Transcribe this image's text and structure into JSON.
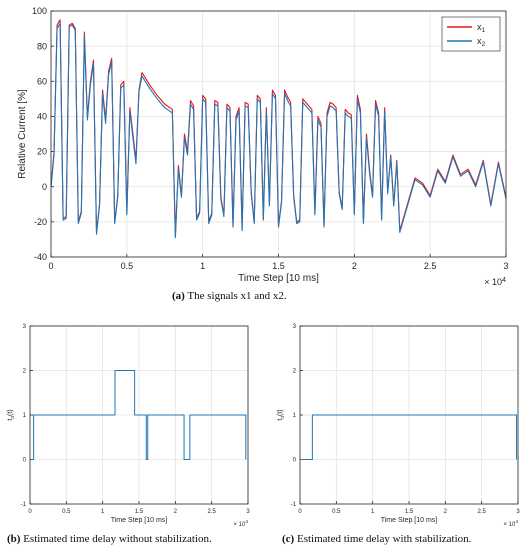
{
  "chart_data": [
    {
      "type": "line",
      "id": "a",
      "caption_label": "(a)",
      "caption_text": "The signals x1 and x2.",
      "xlabel": "Time Step [10 ms]",
      "ylabel": "Relative Current [%]",
      "x_exponent": "× 10^4",
      "xlim": [
        0,
        3
      ],
      "ylim": [
        -40,
        100
      ],
      "xticks": [
        "0",
        "0.5",
        "1",
        "1.5",
        "2",
        "2.5",
        "3"
      ],
      "yticks": [
        "-40",
        "-20",
        "0",
        "20",
        "40",
        "60",
        "80",
        "100"
      ],
      "grid": true,
      "legend": {
        "placement": "top-right",
        "entries": [
          "x1",
          "x2"
        ]
      },
      "series": [
        {
          "name": "x1",
          "color": "#e8161b",
          "x": [
            0,
            0.02,
            0.04,
            0.06,
            0.08,
            0.1,
            0.12,
            0.14,
            0.16,
            0.18,
            0.2,
            0.22,
            0.24,
            0.26,
            0.28,
            0.3,
            0.32,
            0.34,
            0.36,
            0.38,
            0.4,
            0.42,
            0.44,
            0.46,
            0.48,
            0.5,
            0.52,
            0.54,
            0.56,
            0.58,
            0.6,
            0.65,
            0.7,
            0.75,
            0.8,
            0.82,
            0.84,
            0.86,
            0.88,
            0.9,
            0.92,
            0.94,
            0.96,
            0.98,
            1.0,
            1.02,
            1.04,
            1.06,
            1.08,
            1.1,
            1.12,
            1.14,
            1.16,
            1.18,
            1.2,
            1.22,
            1.24,
            1.26,
            1.28,
            1.3,
            1.32,
            1.34,
            1.36,
            1.38,
            1.4,
            1.42,
            1.44,
            1.46,
            1.48,
            1.5,
            1.52,
            1.54,
            1.56,
            1.58,
            1.6,
            1.62,
            1.64,
            1.66,
            1.68,
            1.7,
            1.72,
            1.74,
            1.76,
            1.78,
            1.8,
            1.82,
            1.84,
            1.86,
            1.88,
            1.9,
            1.92,
            1.94,
            1.96,
            1.98,
            2.0,
            2.02,
            2.04,
            2.06,
            2.08,
            2.1,
            2.12,
            2.14,
            2.16,
            2.18,
            2.2,
            2.22,
            2.24,
            2.26,
            2.28,
            2.3,
            2.35,
            2.4,
            2.45,
            2.5,
            2.55,
            2.6,
            2.65,
            2.7,
            2.75,
            2.8,
            2.85,
            2.9,
            2.95,
            3.0
          ],
          "y": [
            0,
            20,
            92,
            95,
            -18,
            -17,
            92,
            93,
            90,
            -20,
            -14,
            88,
            40,
            60,
            72,
            -26,
            -10,
            55,
            38,
            66,
            73,
            -20,
            -5,
            58,
            60,
            -15,
            45,
            30,
            15,
            55,
            65,
            58,
            52,
            47,
            44,
            -28,
            12,
            -5,
            30,
            20,
            49,
            46,
            -18,
            -14,
            52,
            50,
            -20,
            -15,
            49,
            48,
            -6,
            -16,
            47,
            45,
            -22,
            40,
            45,
            -24,
            48,
            47,
            -3,
            -20,
            52,
            50,
            -18,
            45,
            -10,
            55,
            52,
            -22,
            -8,
            55,
            51,
            48,
            -5,
            -20,
            -19,
            50,
            48,
            46,
            44,
            -15,
            40,
            36,
            -22,
            42,
            48,
            47,
            45,
            -3,
            -12,
            44,
            42,
            41,
            -15,
            52,
            44,
            -20,
            30,
            10,
            -5,
            49,
            42,
            -18,
            45,
            -3,
            18,
            -10,
            15,
            -25,
            -10,
            5,
            2,
            -5,
            10,
            3,
            18,
            7,
            10,
            1,
            15,
            -10,
            14,
            -6
          ]
        },
        {
          "name": "x2",
          "color": "#1f77b4",
          "x": [
            0,
            0.02,
            0.04,
            0.06,
            0.08,
            0.1,
            0.12,
            0.14,
            0.16,
            0.18,
            0.2,
            0.22,
            0.24,
            0.26,
            0.28,
            0.3,
            0.32,
            0.34,
            0.36,
            0.38,
            0.4,
            0.42,
            0.44,
            0.46,
            0.48,
            0.5,
            0.52,
            0.54,
            0.56,
            0.58,
            0.6,
            0.65,
            0.7,
            0.75,
            0.8,
            0.82,
            0.84,
            0.86,
            0.88,
            0.9,
            0.92,
            0.94,
            0.96,
            0.98,
            1.0,
            1.02,
            1.04,
            1.06,
            1.08,
            1.1,
            1.12,
            1.14,
            1.16,
            1.18,
            1.2,
            1.22,
            1.24,
            1.26,
            1.28,
            1.3,
            1.32,
            1.34,
            1.36,
            1.38,
            1.4,
            1.42,
            1.44,
            1.46,
            1.48,
            1.5,
            1.52,
            1.54,
            1.56,
            1.58,
            1.6,
            1.62,
            1.64,
            1.66,
            1.68,
            1.7,
            1.72,
            1.74,
            1.76,
            1.78,
            1.8,
            1.82,
            1.84,
            1.86,
            1.88,
            1.9,
            1.92,
            1.94,
            1.96,
            1.98,
            2.0,
            2.02,
            2.04,
            2.06,
            2.08,
            2.1,
            2.12,
            2.14,
            2.16,
            2.18,
            2.2,
            2.22,
            2.24,
            2.26,
            2.28,
            2.3,
            2.35,
            2.4,
            2.45,
            2.5,
            2.55,
            2.6,
            2.65,
            2.7,
            2.75,
            2.8,
            2.85,
            2.9,
            2.95,
            3.0
          ],
          "y": [
            0,
            18,
            90,
            93,
            -19,
            -18,
            91,
            92,
            89,
            -21,
            -15,
            86,
            38,
            58,
            70,
            -27,
            -11,
            53,
            36,
            64,
            71,
            -21,
            -6,
            56,
            58,
            -16,
            43,
            28,
            13,
            54,
            63,
            56,
            50,
            45,
            42,
            -29,
            10,
            -6,
            28,
            18,
            47,
            44,
            -19,
            -15,
            50,
            48,
            -21,
            -16,
            47,
            46,
            -7,
            -17,
            45,
            43,
            -23,
            38,
            43,
            -25,
            46,
            45,
            -4,
            -21,
            50,
            48,
            -19,
            43,
            -11,
            53,
            50,
            -23,
            -9,
            53,
            49,
            46,
            -6,
            -21,
            -20,
            48,
            46,
            44,
            42,
            -16,
            38,
            34,
            -23,
            40,
            46,
            45,
            43,
            -4,
            -13,
            42,
            40,
            39,
            -16,
            50,
            42,
            -21,
            28,
            8,
            -6,
            47,
            40,
            -19,
            43,
            -4,
            17,
            -11,
            14,
            -26,
            -11,
            4,
            1,
            -6,
            9,
            2,
            17,
            6,
            9,
            0,
            14,
            -11,
            13,
            -7
          ]
        }
      ]
    },
    {
      "type": "line",
      "id": "b",
      "caption_label": "(b)",
      "caption_text": "Estimated time delay without stabilization.",
      "xlabel": "Time Step [10 ms]",
      "ylabel": "t_d(t)",
      "x_exponent": "× 10^4",
      "xlim": [
        0,
        3
      ],
      "ylim": [
        -1,
        3
      ],
      "xticks": [
        "0",
        "0.5",
        "1",
        "1.5",
        "2",
        "2.5",
        "3"
      ],
      "yticks": [
        "-1",
        "0",
        "1",
        "2",
        "3"
      ],
      "grid": true,
      "series": [
        {
          "color": "#1f77b4",
          "x": [
            0,
            0.05,
            0.05,
            1.17,
            1.17,
            1.44,
            1.44,
            1.6,
            1.6,
            1.62,
            1.62,
            2.12,
            2.12,
            2.2,
            2.2,
            2.97,
            2.97
          ],
          "y": [
            0,
            0,
            1,
            1,
            2,
            2,
            1,
            1,
            0,
            0,
            1,
            1,
            0,
            0,
            1,
            1,
            0
          ]
        }
      ]
    },
    {
      "type": "line",
      "id": "c",
      "caption_label": "(c)",
      "caption_text": "Estimated time delay with stabilization.",
      "xlabel": "Time Step [10 ms]",
      "ylabel": "t_d(t)",
      "x_exponent": "× 10^4",
      "xlim": [
        0,
        3
      ],
      "ylim": [
        -1,
        3
      ],
      "xticks": [
        "0",
        "0.5",
        "1",
        "1.5",
        "2",
        "2.5",
        "3"
      ],
      "yticks": [
        "-1",
        "0",
        "1",
        "2",
        "3"
      ],
      "grid": true,
      "series": [
        {
          "color": "#1f77b4",
          "x": [
            0,
            0.17,
            0.17,
            2.98,
            2.98
          ],
          "y": [
            0,
            0,
            1,
            1,
            0
          ]
        }
      ]
    }
  ]
}
